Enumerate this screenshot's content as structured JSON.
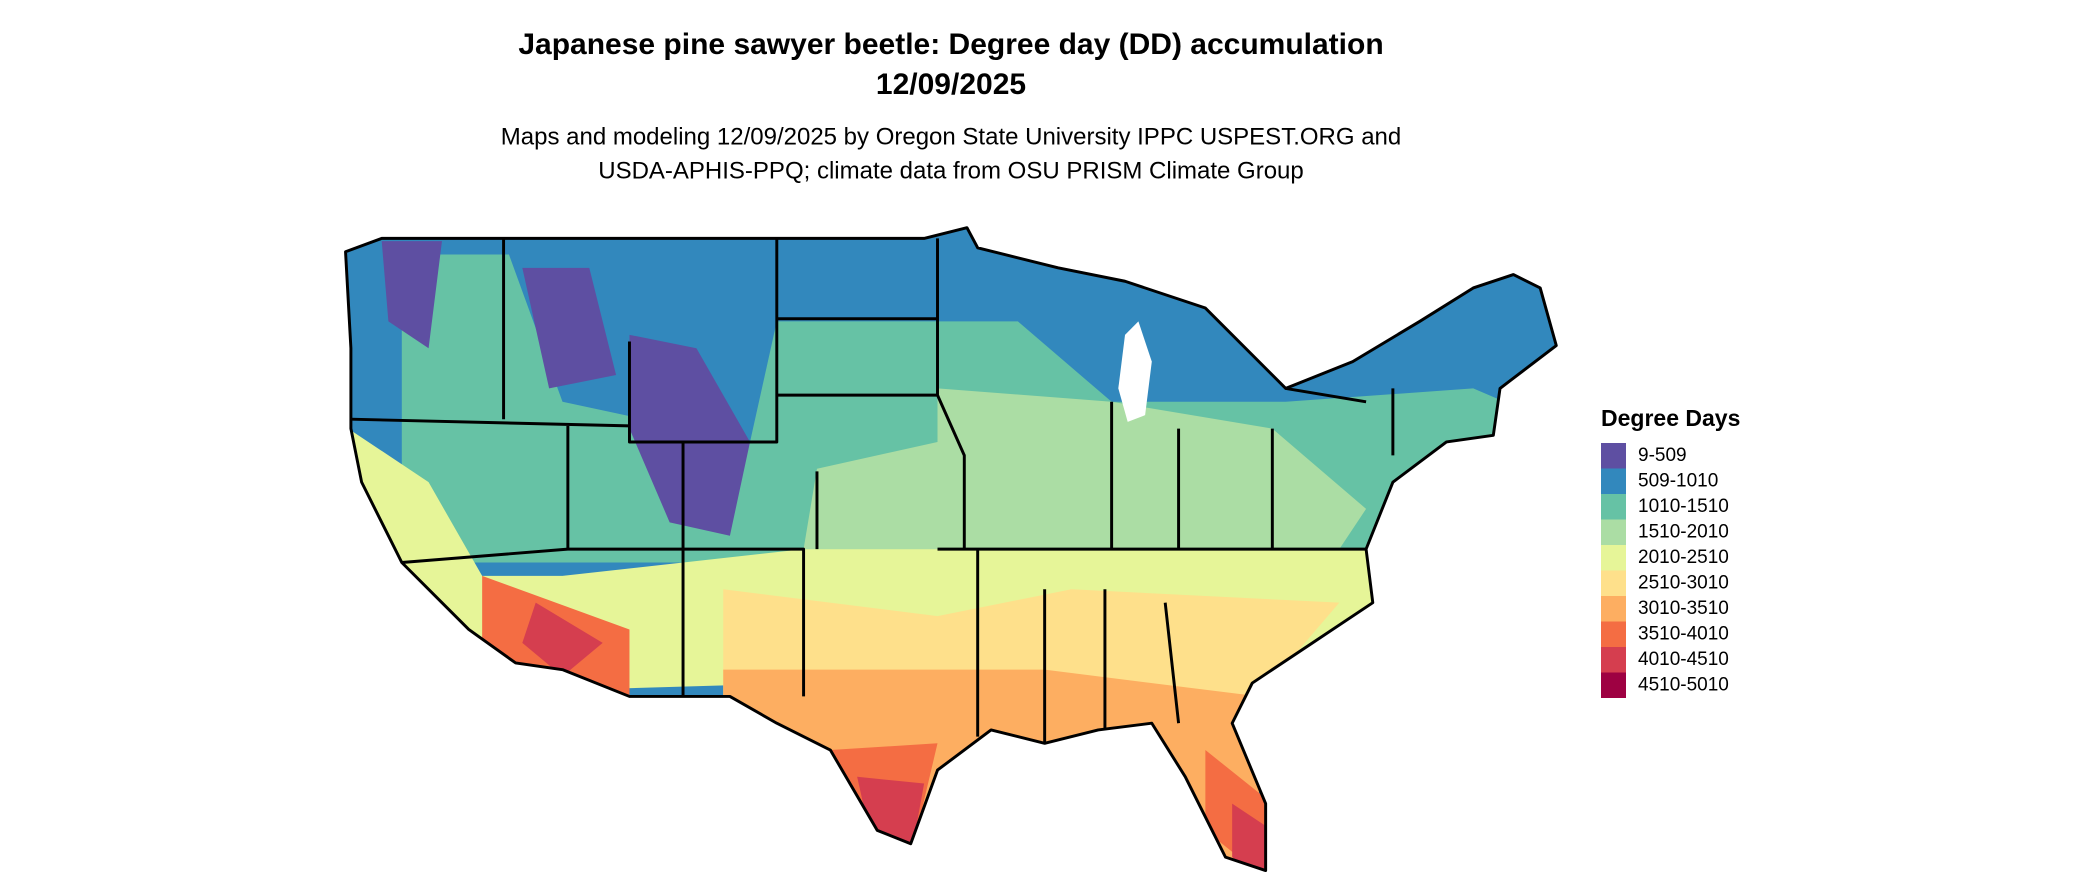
{
  "title": [
    "Japanese pine sawyer beetle: Degree day (DD) accumulation",
    "12/09/2025"
  ],
  "subtitle": [
    "Maps and modeling 12/09/2025 by Oregon State University IPPC USPEST.ORG and",
    "USDA-APHIS-PPQ; climate data from OSU PRISM Climate Group"
  ],
  "legend": {
    "title": "Degree Days",
    "items": [
      {
        "label": "9-509",
        "color": "#5e4fa2"
      },
      {
        "label": "509-1010",
        "color": "#3288bd"
      },
      {
        "label": "1010-1510",
        "color": "#66c2a5"
      },
      {
        "label": "1510-2010",
        "color": "#abdda4"
      },
      {
        "label": "2010-2510",
        "color": "#e6f598"
      },
      {
        "label": "2510-3010",
        "color": "#fee08b"
      },
      {
        "label": "3010-3510",
        "color": "#fdae61"
      },
      {
        "label": "3510-4010",
        "color": "#f46d43"
      },
      {
        "label": "4010-4510",
        "color": "#d53e4f"
      },
      {
        "label": "4510-5010",
        "color": "#9e0142"
      }
    ]
  }
}
